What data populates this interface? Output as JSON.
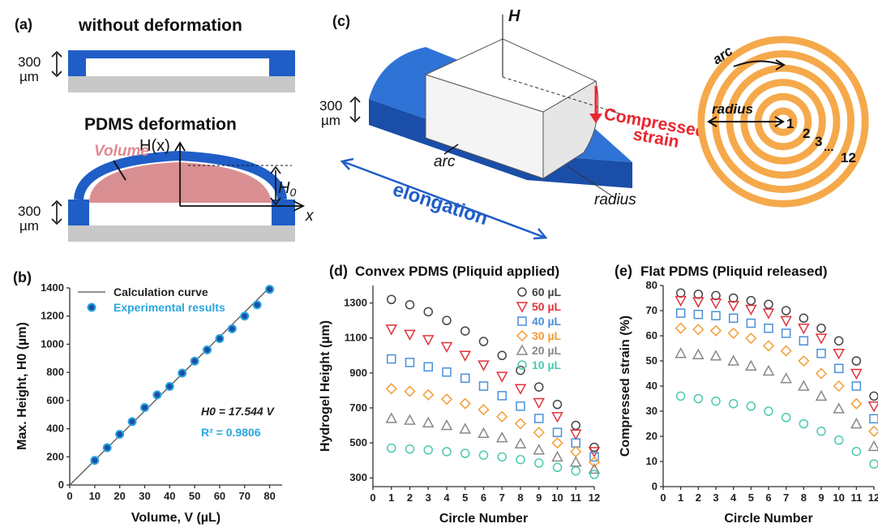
{
  "panel_a": {
    "tag": "(a)",
    "top_title": "without deformation",
    "bottom_title": "PDMS deformation",
    "thickness_num": "300",
    "thickness_unit": "µm",
    "volume_label": "Volume",
    "hx_label": "H(x)",
    "h0_label": "H",
    "h0_sub": "0",
    "x_label": "x"
  },
  "panel_c": {
    "tag": "(c)",
    "H_label": "H",
    "compressed_1": "Compressed",
    "compressed_2": "strain",
    "arc_label": "arc",
    "radius_label": "radius",
    "elongation_label": "elongation",
    "thickness_num": "300",
    "thickness_unit": "µm",
    "ring_arc": "arc",
    "ring_radius": "radius",
    "ring_n1": "1",
    "ring_n2": "2",
    "ring_n3": "3",
    "ring_dots": "...",
    "ring_n12": "12",
    "colors": {
      "pdms": "#1f5ec6",
      "strain": "#e8262f",
      "ring": "#f5a94a",
      "hydrogel": "#d98f92"
    }
  },
  "chart_data": [
    {
      "id": "b",
      "tag": "(b)",
      "type": "scatter",
      "xlabel": "Volume, V (µL)",
      "ylabel": "Max. Height, H0 (µm)",
      "xlim": [
        0,
        85
      ],
      "ylim": [
        0,
        1400
      ],
      "xticks": [
        0,
        10,
        20,
        30,
        40,
        50,
        60,
        70,
        80
      ],
      "yticks": [
        0,
        200,
        400,
        600,
        800,
        1000,
        1200,
        1400
      ],
      "legend": {
        "line": "Calculation curve",
        "points": "Experimental results"
      },
      "equation": "H0 = 17.544 V",
      "r2": "R² = 0.9806",
      "fit_slope": 17.544,
      "series": [
        {
          "name": "Experimental results",
          "color": "#29a6e0",
          "x": [
            10,
            15,
            20,
            25,
            30,
            35,
            40,
            45,
            50,
            55,
            60,
            65,
            70,
            75,
            80
          ],
          "y": [
            175,
            265,
            360,
            450,
            550,
            640,
            700,
            795,
            880,
            960,
            1040,
            1110,
            1200,
            1280,
            1390
          ]
        }
      ]
    },
    {
      "id": "d",
      "tag": "(d)",
      "type": "scatter",
      "title": "Convex PDMS (Pliquid applied)",
      "xlabel": "Circle Number",
      "ylabel": "Hydrogel Height (µm)",
      "xlim": [
        0,
        12
      ],
      "ylim": [
        250,
        1400
      ],
      "xticks": [
        0,
        1,
        2,
        3,
        4,
        5,
        6,
        7,
        8,
        9,
        10,
        11,
        12
      ],
      "yticks": [
        300,
        500,
        700,
        900,
        1100,
        1300
      ],
      "series": [
        {
          "name": "60 µL",
          "marker": "circle",
          "color": "#444444",
          "values": [
            1320,
            1290,
            1250,
            1200,
            1140,
            1080,
            1000,
            915,
            820,
            720,
            600,
            475
          ]
        },
        {
          "name": "50 µL",
          "marker": "triangle-down",
          "color": "#e0343c",
          "values": [
            1150,
            1120,
            1090,
            1050,
            1000,
            945,
            880,
            810,
            730,
            650,
            550,
            450
          ]
        },
        {
          "name": "40 µL",
          "marker": "square",
          "color": "#4a90d9",
          "values": [
            980,
            960,
            935,
            905,
            870,
            825,
            770,
            710,
            640,
            560,
            500,
            420
          ]
        },
        {
          "name": "30 µL",
          "marker": "diamond",
          "color": "#f39c34",
          "values": [
            810,
            795,
            775,
            750,
            725,
            690,
            650,
            610,
            560,
            500,
            450,
            390
          ]
        },
        {
          "name": "20 µL",
          "marker": "triangle-up",
          "color": "#888888",
          "values": [
            640,
            630,
            615,
            600,
            580,
            555,
            530,
            495,
            460,
            420,
            390,
            350
          ]
        },
        {
          "name": "10 µL",
          "marker": "circle",
          "color": "#4cc9b0",
          "values": [
            470,
            465,
            460,
            450,
            440,
            430,
            420,
            405,
            385,
            360,
            340,
            320
          ]
        }
      ]
    },
    {
      "id": "e",
      "tag": "(e)",
      "type": "scatter",
      "title": "Flat PDMS (Pliquid released)",
      "xlabel": "Circle Number",
      "ylabel": "Compressed strain (%)",
      "xlim": [
        0,
        12
      ],
      "ylim": [
        0,
        80
      ],
      "xticks": [
        0,
        1,
        2,
        3,
        4,
        5,
        6,
        7,
        8,
        9,
        10,
        11,
        12
      ],
      "yticks": [
        0,
        10,
        20,
        30,
        40,
        50,
        60,
        70,
        80
      ],
      "series": [
        {
          "name": "60 µL",
          "marker": "circle",
          "color": "#444444",
          "values": [
            77,
            76.5,
            76,
            75,
            74,
            72.5,
            70,
            67,
            63,
            58,
            50,
            36
          ]
        },
        {
          "name": "50 µL",
          "marker": "triangle-down",
          "color": "#e0343c",
          "values": [
            74,
            73.5,
            73,
            72,
            70.5,
            69,
            66,
            63,
            59,
            53,
            45,
            32
          ]
        },
        {
          "name": "40 µL",
          "marker": "square",
          "color": "#4a90d9",
          "values": [
            69,
            68.5,
            68,
            67,
            65,
            63,
            61,
            58,
            53,
            47,
            40,
            27
          ]
        },
        {
          "name": "30 µL",
          "marker": "diamond",
          "color": "#f39c34",
          "values": [
            63,
            62.5,
            62,
            61,
            59,
            56,
            54,
            50,
            45,
            40,
            33,
            22
          ]
        },
        {
          "name": "20 µL",
          "marker": "triangle-up",
          "color": "#888888",
          "values": [
            53,
            52.5,
            52,
            50,
            48,
            46,
            43,
            40,
            36,
            31,
            25,
            16
          ]
        },
        {
          "name": "10 µL",
          "marker": "circle",
          "color": "#4cc9b0",
          "values": [
            36,
            35,
            34,
            33,
            32,
            30,
            27.5,
            25,
            22,
            18.5,
            14,
            9
          ]
        }
      ]
    }
  ]
}
